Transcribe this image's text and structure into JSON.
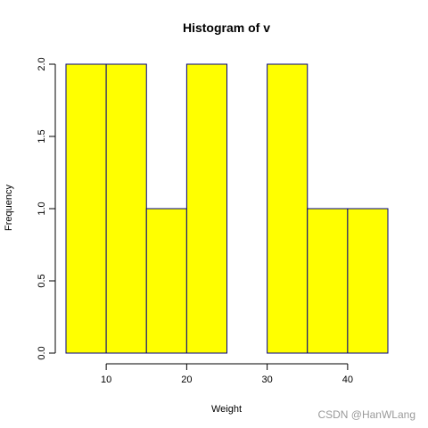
{
  "chart_data": {
    "type": "bar",
    "title": "Histogram of v",
    "xlabel": "Weight",
    "ylabel": "Frequency",
    "bins": [
      {
        "from": 5,
        "to": 10,
        "count": 2
      },
      {
        "from": 10,
        "to": 15,
        "count": 2
      },
      {
        "from": 15,
        "to": 20,
        "count": 1
      },
      {
        "from": 20,
        "to": 25,
        "count": 2
      },
      {
        "from": 25,
        "to": 30,
        "count": 0
      },
      {
        "from": 30,
        "to": 35,
        "count": 2
      },
      {
        "from": 35,
        "to": 40,
        "count": 1
      },
      {
        "from": 40,
        "to": 45,
        "count": 1
      }
    ],
    "xlim": [
      5,
      45
    ],
    "ylim": [
      0,
      2
    ],
    "x_ticks": [
      10,
      20,
      30,
      40
    ],
    "y_ticks": [
      "0.0",
      "0.5",
      "1.0",
      "1.5",
      "2.0"
    ],
    "bar_fill": "#ffff00",
    "bar_edge": "#000080",
    "grid": false,
    "legend": "none"
  },
  "watermark": "CSDN @HanWLang"
}
